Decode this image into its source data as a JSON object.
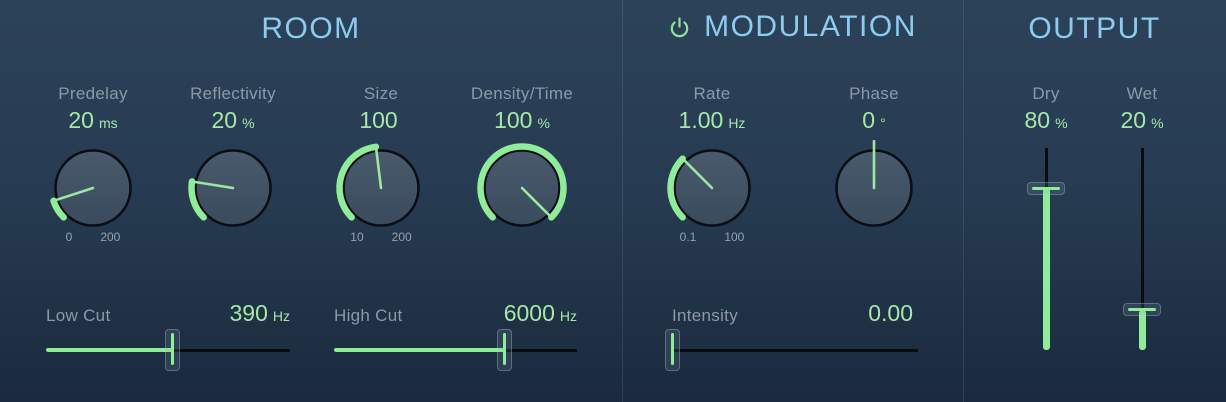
{
  "colors": {
    "accent_green": "#8fec98",
    "value_green": "#a5e9a8",
    "title_blue": "#8cccee",
    "label_gray": "#8d99a9",
    "background_top": "#2c4258",
    "background_bottom": "#1b2a3e"
  },
  "sections": {
    "room": {
      "title": "ROOM",
      "knobs": [
        {
          "label": "Predelay",
          "value": "20",
          "unit": "ms",
          "angle": -108,
          "arc": true,
          "ticks": [
            "0",
            "200"
          ]
        },
        {
          "label": "Reflectivity",
          "value": "20",
          "unit": "%",
          "angle": -81,
          "arc": true,
          "ticks": []
        },
        {
          "label": "Size",
          "value": "100",
          "unit": "",
          "angle": -7,
          "arc": true,
          "ticks": [
            "10",
            "200"
          ]
        },
        {
          "label": "Density/Time",
          "value": "100",
          "unit": "%",
          "angle": 135,
          "arc": true,
          "ticks": []
        }
      ],
      "sliders": [
        {
          "label": "Low Cut",
          "value": "390",
          "unit": "Hz",
          "fill_pct": 52
        },
        {
          "label": "High Cut",
          "value": "6000",
          "unit": "Hz",
          "fill_pct": 70
        }
      ]
    },
    "modulation": {
      "title": "MODULATION",
      "power_icon": "power",
      "knobs": [
        {
          "label": "Rate",
          "value": "1.00",
          "unit": "Hz",
          "angle": -45,
          "arc": true,
          "ticks": [
            "0.1",
            "100"
          ]
        },
        {
          "label": "Phase",
          "value": "0",
          "unit": "°",
          "angle": 0,
          "arc": false,
          "ticks": []
        }
      ],
      "slider": {
        "label": "Intensity",
        "value": "0.00",
        "unit": "",
        "fill_pct": 0
      }
    },
    "output": {
      "title": "OUTPUT",
      "faders": [
        {
          "label": "Dry",
          "value": "80",
          "unit": "%",
          "fill_pct": 80
        },
        {
          "label": "Wet",
          "value": "20",
          "unit": "%",
          "fill_pct": 20
        }
      ]
    }
  }
}
